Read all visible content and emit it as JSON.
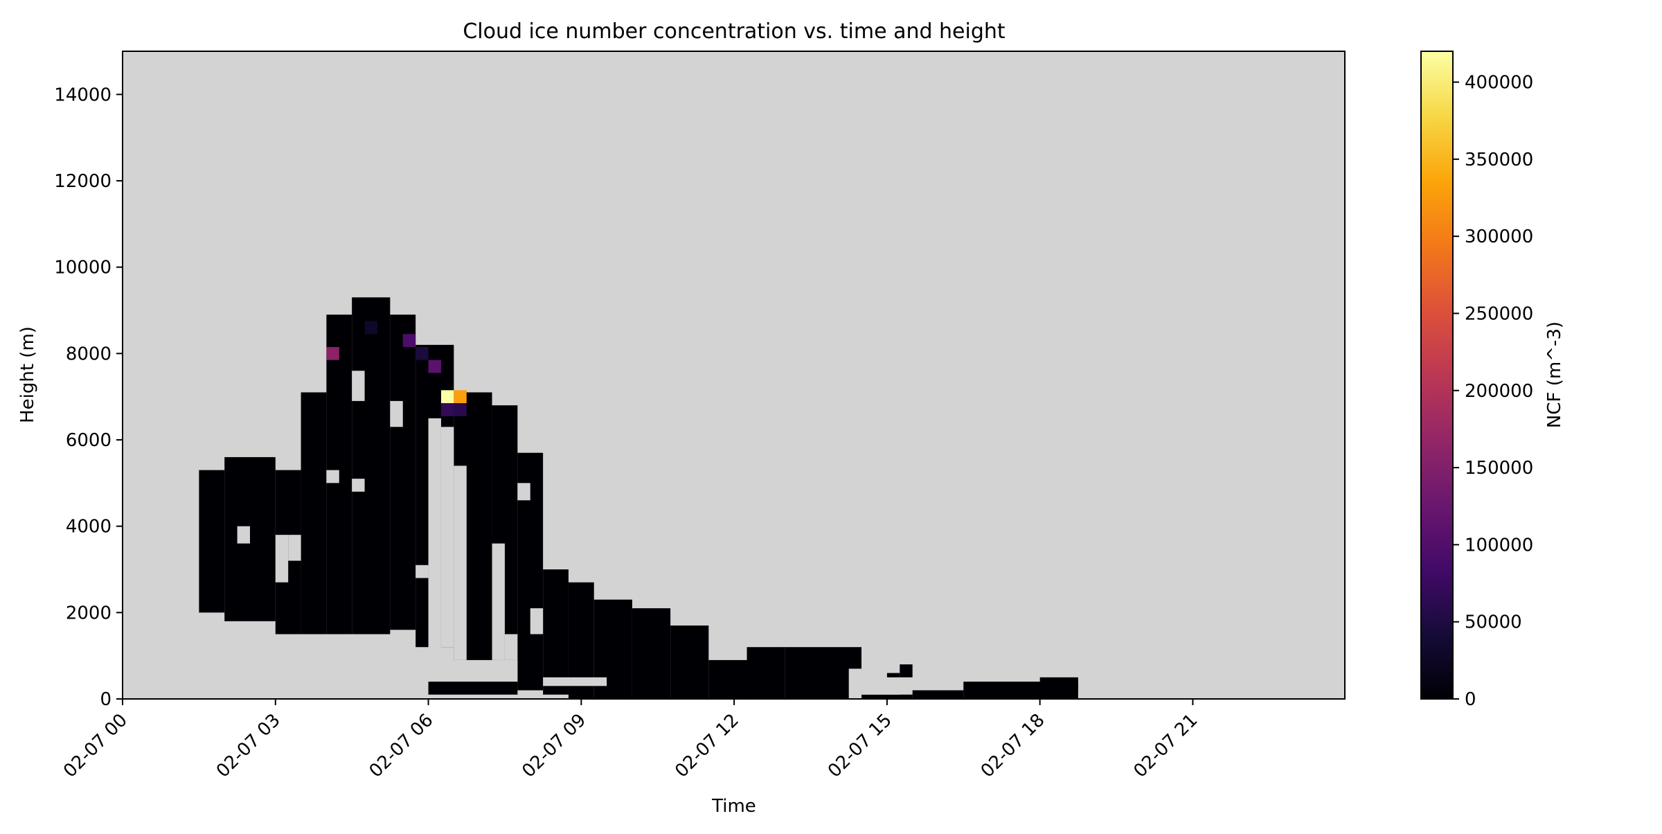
{
  "chart_data": {
    "type": "heatmap",
    "title": "Cloud ice number concentration vs. time and height",
    "xlabel": "Time",
    "ylabel": "Height (m)",
    "xlim": [
      "2023-02-07 00:00",
      "2023-02-07 23:59"
    ],
    "ylim": [
      0,
      15000
    ],
    "x_tick_values": [
      "2023-02-07 00:00",
      "2023-02-07 03:00",
      "2023-02-07 06:00",
      "2023-02-07 09:00",
      "2023-02-07 12:00",
      "2023-02-07 15:00",
      "2023-02-07 18:00",
      "2023-02-07 21:00"
    ],
    "x_tick_labels": [
      "02-07 00",
      "02-07 03",
      "02-07 06",
      "02-07 09",
      "02-07 12",
      "02-07 15",
      "02-07 18",
      "02-07 21"
    ],
    "y_ticks": [
      0,
      2000,
      4000,
      6000,
      8000,
      10000,
      12000,
      14000
    ],
    "time_step_minutes": 15,
    "height_step_m": 300,
    "missing_color": "#d3d3d3",
    "colormap": "inferno",
    "colorbar": {
      "label": "NCF (m^-3)",
      "range": [
        0,
        420000
      ],
      "ticks": [
        0,
        50000,
        100000,
        150000,
        200000,
        250000,
        300000,
        350000,
        400000
      ]
    },
    "cloud_columns": [
      {
        "from": "2023-02-07 01:30",
        "to": "2023-02-07 02:00",
        "bottom": 2000,
        "top": 5300
      },
      {
        "from": "2023-02-07 02:00",
        "to": "2023-02-07 03:00",
        "bottom": 1800,
        "top": 5600
      },
      {
        "from": "2023-02-07 03:00",
        "to": "2023-02-07 03:30",
        "bottom": 1500,
        "top": 5300
      },
      {
        "from": "2023-02-07 03:30",
        "to": "2023-02-07 04:00",
        "bottom": 1500,
        "top": 7100
      },
      {
        "from": "2023-02-07 04:00",
        "to": "2023-02-07 04:30",
        "bottom": 1500,
        "top": 8900
      },
      {
        "from": "2023-02-07 04:30",
        "to": "2023-02-07 05:15",
        "bottom": 1500,
        "top": 9300
      },
      {
        "from": "2023-02-07 05:15",
        "to": "2023-02-07 05:45",
        "bottom": 1600,
        "top": 8900
      },
      {
        "from": "2023-02-07 05:45",
        "to": "2023-02-07 06:30",
        "bottom": 1200,
        "top": 8200
      },
      {
        "from": "2023-02-07 06:30",
        "to": "2023-02-07 07:15",
        "bottom": 900,
        "top": 7100
      },
      {
        "from": "2023-02-07 07:15",
        "to": "2023-02-07 07:45",
        "bottom": 900,
        "top": 6800
      },
      {
        "from": "2023-02-07 07:45",
        "to": "2023-02-07 08:15",
        "bottom": 200,
        "top": 5700
      },
      {
        "from": "2023-02-07 08:15",
        "to": "2023-02-07 08:45",
        "bottom": 100,
        "top": 3000
      },
      {
        "from": "2023-02-07 08:45",
        "to": "2023-02-07 09:15",
        "bottom": 0,
        "top": 2700
      },
      {
        "from": "2023-02-07 09:15",
        "to": "2023-02-07 10:00",
        "bottom": 0,
        "top": 2300
      },
      {
        "from": "2023-02-07 10:00",
        "to": "2023-02-07 10:45",
        "bottom": 0,
        "top": 2100
      },
      {
        "from": "2023-02-07 10:45",
        "to": "2023-02-07 11:30",
        "bottom": 0,
        "top": 1700
      },
      {
        "from": "2023-02-07 11:30",
        "to": "2023-02-07 12:15",
        "bottom": 0,
        "top": 900
      },
      {
        "from": "2023-02-07 12:15",
        "to": "2023-02-07 13:00",
        "bottom": 0,
        "top": 1200
      },
      {
        "from": "2023-02-07 13:00",
        "to": "2023-02-07 14:30",
        "bottom": 0,
        "top": 1200
      },
      {
        "from": "2023-02-07 14:30",
        "to": "2023-02-07 15:30",
        "bottom": 0,
        "top": 100
      },
      {
        "from": "2023-02-07 15:30",
        "to": "2023-02-07 16:30",
        "bottom": 0,
        "top": 200
      },
      {
        "from": "2023-02-07 16:30",
        "to": "2023-02-07 18:45",
        "bottom": 0,
        "top": 400
      }
    ],
    "high_values": [
      {
        "time": "2023-02-07 06:15",
        "height": 7000,
        "value": 420000
      },
      {
        "time": "2023-02-07 06:30",
        "height": 7000,
        "value": 330000
      },
      {
        "time": "2023-02-07 06:15",
        "height": 6700,
        "value": 70000
      },
      {
        "time": "2023-02-07 06:30",
        "height": 6700,
        "value": 60000
      },
      {
        "time": "2023-02-07 04:00",
        "height": 8000,
        "value": 160000
      },
      {
        "time": "2023-02-07 05:30",
        "height": 8300,
        "value": 95000
      },
      {
        "time": "2023-02-07 05:45",
        "height": 8000,
        "value": 45000
      },
      {
        "time": "2023-02-07 06:00",
        "height": 7700,
        "value": 110000
      },
      {
        "time": "2023-02-07 04:45",
        "height": 8600,
        "value": 30000
      }
    ],
    "gaps": [
      {
        "from": "2023-02-07 06:30",
        "to": "2023-02-07 06:45",
        "bottom": 900,
        "top": 5400
      },
      {
        "from": "2023-02-07 06:30",
        "to": "2023-02-07 06:45",
        "bottom": 0,
        "top": 200
      },
      {
        "from": "2023-02-07 03:00",
        "to": "2023-02-07 03:15",
        "bottom": 2700,
        "top": 3800
      },
      {
        "from": "2023-02-07 03:15",
        "to": "2023-02-07 03:30",
        "bottom": 3200,
        "top": 3800
      },
      {
        "from": "2023-02-07 02:15",
        "to": "2023-02-07 02:30",
        "bottom": 3600,
        "top": 4000
      },
      {
        "from": "2023-02-07 04:30",
        "to": "2023-02-07 04:45",
        "bottom": 6900,
        "top": 7600
      },
      {
        "from": "2023-02-07 05:15",
        "to": "2023-02-07 05:30",
        "bottom": 6300,
        "top": 6900
      },
      {
        "from": "2023-02-07 04:00",
        "to": "2023-02-07 04:15",
        "bottom": 5000,
        "top": 5300
      },
      {
        "from": "2023-02-07 04:30",
        "to": "2023-02-07 04:45",
        "bottom": 4800,
        "top": 5100
      },
      {
        "from": "2023-02-07 05:45",
        "to": "2023-02-07 06:00",
        "bottom": 2800,
        "top": 3100
      },
      {
        "from": "2023-02-07 07:45",
        "to": "2023-02-07 08:00",
        "bottom": 4600,
        "top": 5000
      },
      {
        "from": "2023-02-07 07:15",
        "to": "2023-02-07 07:30",
        "bottom": 900,
        "top": 3600
      },
      {
        "from": "2023-02-07 07:30",
        "to": "2023-02-07 07:45",
        "bottom": 900,
        "top": 1500
      },
      {
        "from": "2023-02-07 08:00",
        "to": "2023-02-07 08:15",
        "bottom": 1500,
        "top": 2100
      },
      {
        "from": "2023-02-07 07:15",
        "to": "2023-02-07 07:45",
        "bottom": 400,
        "top": 900
      },
      {
        "from": "2023-02-07 06:00",
        "to": "2023-02-07 06:15",
        "bottom": 900,
        "top": 6500
      },
      {
        "from": "2023-02-07 06:15",
        "to": "2023-02-07 06:30",
        "bottom": 1200,
        "top": 6300
      },
      {
        "from": "2023-02-07 08:15",
        "to": "2023-02-07 09:30",
        "bottom": 300,
        "top": 500
      },
      {
        "from": "2023-02-07 14:15",
        "to": "2023-02-07 14:30",
        "bottom": 0,
        "top": 700
      },
      {
        "from": "2023-02-07 14:30",
        "to": "2023-02-07 15:15",
        "bottom": 100,
        "top": 1200
      }
    ],
    "fragments": [
      {
        "from": "2023-02-07 15:00",
        "to": "2023-02-07 15:15",
        "bottom": 500,
        "top": 600
      },
      {
        "from": "2023-02-07 15:15",
        "to": "2023-02-07 15:30",
        "bottom": 500,
        "top": 800
      },
      {
        "from": "2023-02-07 06:00",
        "to": "2023-02-07 07:45",
        "bottom": 100,
        "top": 400
      },
      {
        "from": "2023-02-07 18:00",
        "to": "2023-02-07 18:45",
        "bottom": 200,
        "top": 500
      }
    ]
  }
}
